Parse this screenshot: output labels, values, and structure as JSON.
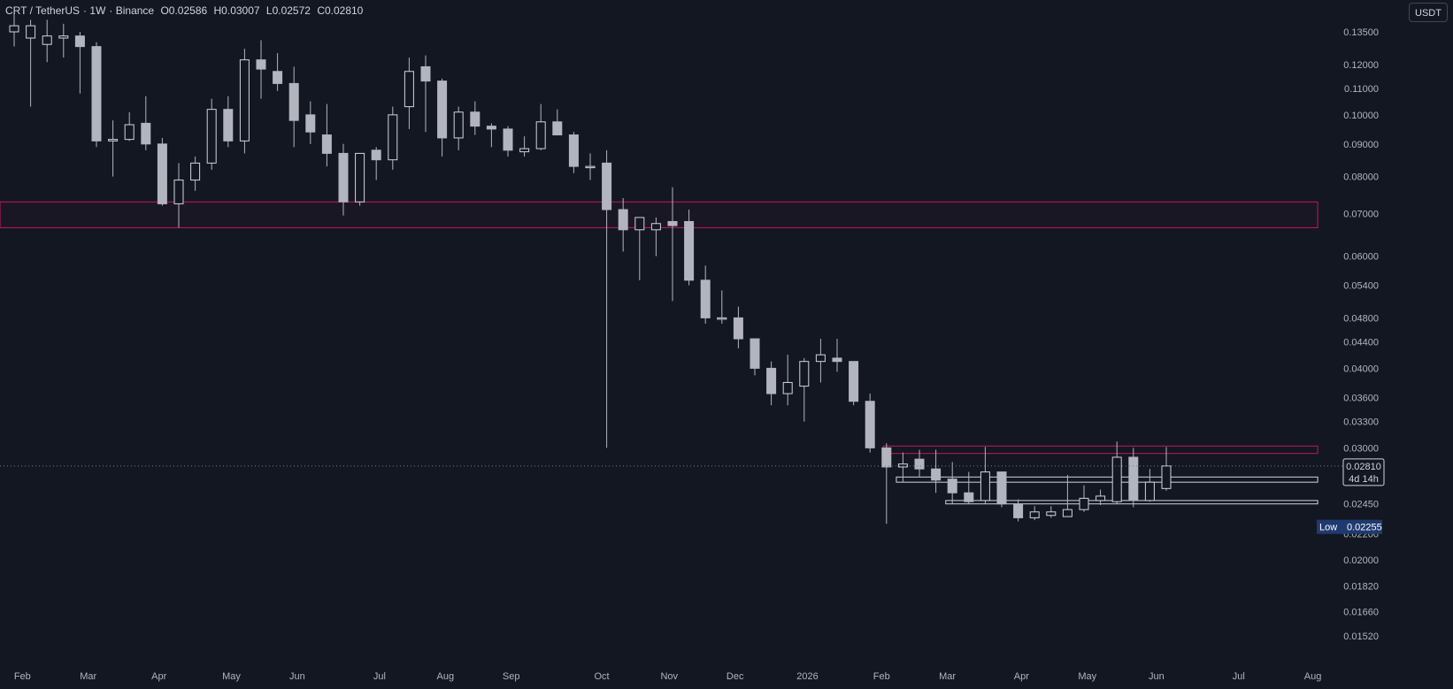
{
  "legend": {
    "symbol": "CRT / TetherUS",
    "interval": "1W",
    "exchange": "Binance",
    "open": "O0.02586",
    "high": "H0.03007",
    "low": "L0.02572",
    "close": "C0.02810"
  },
  "currency_button": "USDT",
  "price_tag": {
    "value": "0.02810",
    "countdown": "4d 14h"
  },
  "low_tag": {
    "label": "Low",
    "value": "0.02255"
  },
  "colors": {
    "background": "#131722",
    "candle": "#b2b5be",
    "wick": "#b2b5be",
    "zone_border": "#c2185b",
    "box_border": "#d1d4dc",
    "low_tag_bg": "#1f3a70"
  },
  "chart_data": {
    "type": "candlestick",
    "scale": "log",
    "ylim": [
      0.0149,
      0.139
    ],
    "y_ticks": [
      "0.13500",
      "0.12000",
      "0.11000",
      "0.10000",
      "0.09000",
      "0.08000",
      "0.07000",
      "0.06000",
      "0.05400",
      "0.04800",
      "0.04400",
      "0.04000",
      "0.03600",
      "0.03300",
      "0.03000",
      "0.02450",
      "0.02200",
      "0.02000",
      "0.01820",
      "0.01660",
      "0.01520"
    ],
    "y_tick_values": [
      0.135,
      0.12,
      0.11,
      0.1,
      0.09,
      0.08,
      0.07,
      0.06,
      0.054,
      0.048,
      0.044,
      0.04,
      0.036,
      0.033,
      0.03,
      0.0245,
      0.022,
      0.02,
      0.0182,
      0.0166,
      0.0152
    ],
    "x_labels": [
      {
        "label": "Feb",
        "week": 0.5
      },
      {
        "label": "Mar",
        "week": 4.5
      },
      {
        "label": "Apr",
        "week": 8.8
      },
      {
        "label": "May",
        "week": 13.2
      },
      {
        "label": "Jun",
        "week": 17.2
      },
      {
        "label": "Jul",
        "week": 22.2
      },
      {
        "label": "Aug",
        "week": 26.2
      },
      {
        "label": "Sep",
        "week": 30.2
      },
      {
        "label": "Oct",
        "week": 35.7
      },
      {
        "label": "Nov",
        "week": 39.8
      },
      {
        "label": "Dec",
        "week": 43.8
      },
      {
        "label": "2026",
        "week": 48.2
      },
      {
        "label": "Feb",
        "week": 52.7
      },
      {
        "label": "Mar",
        "week": 56.7
      },
      {
        "label": "Apr",
        "week": 61.2
      },
      {
        "label": "May",
        "week": 65.2
      },
      {
        "label": "Jun",
        "week": 69.4
      },
      {
        "label": "Jul",
        "week": 74.4
      },
      {
        "label": "Aug",
        "week": 78.9
      }
    ],
    "candles": [
      {
        "o": 0.135,
        "h": 0.145,
        "l": 0.128,
        "c": 0.138
      },
      {
        "o": 0.132,
        "h": 0.141,
        "l": 0.103,
        "c": 0.138
      },
      {
        "o": 0.129,
        "h": 0.141,
        "l": 0.121,
        "c": 0.133
      },
      {
        "o": 0.132,
        "h": 0.139,
        "l": 0.123,
        "c": 0.133
      },
      {
        "o": 0.133,
        "h": 0.135,
        "l": 0.108,
        "c": 0.128
      },
      {
        "o": 0.128,
        "h": 0.13,
        "l": 0.089,
        "c": 0.091
      },
      {
        "o": 0.091,
        "h": 0.098,
        "l": 0.08,
        "c": 0.0915
      },
      {
        "o": 0.0915,
        "h": 0.101,
        "l": 0.091,
        "c": 0.0965
      },
      {
        "o": 0.097,
        "h": 0.107,
        "l": 0.088,
        "c": 0.09
      },
      {
        "o": 0.09,
        "h": 0.092,
        "l": 0.072,
        "c": 0.0725
      },
      {
        "o": 0.0725,
        "h": 0.084,
        "l": 0.0665,
        "c": 0.079
      },
      {
        "o": 0.079,
        "h": 0.086,
        "l": 0.076,
        "c": 0.084
      },
      {
        "o": 0.084,
        "h": 0.106,
        "l": 0.082,
        "c": 0.102
      },
      {
        "o": 0.102,
        "h": 0.107,
        "l": 0.089,
        "c": 0.091
      },
      {
        "o": 0.091,
        "h": 0.127,
        "l": 0.087,
        "c": 0.122
      },
      {
        "o": 0.122,
        "h": 0.131,
        "l": 0.106,
        "c": 0.118
      },
      {
        "o": 0.117,
        "h": 0.125,
        "l": 0.109,
        "c": 0.112
      },
      {
        "o": 0.112,
        "h": 0.119,
        "l": 0.089,
        "c": 0.098
      },
      {
        "o": 0.1,
        "h": 0.105,
        "l": 0.09,
        "c": 0.094
      },
      {
        "o": 0.093,
        "h": 0.104,
        "l": 0.083,
        "c": 0.087
      },
      {
        "o": 0.087,
        "h": 0.09,
        "l": 0.0695,
        "c": 0.073
      },
      {
        "o": 0.073,
        "h": 0.087,
        "l": 0.072,
        "c": 0.087
      },
      {
        "o": 0.088,
        "h": 0.089,
        "l": 0.079,
        "c": 0.085
      },
      {
        "o": 0.085,
        "h": 0.103,
        "l": 0.082,
        "c": 0.1
      },
      {
        "o": 0.103,
        "h": 0.123,
        "l": 0.095,
        "c": 0.117
      },
      {
        "o": 0.119,
        "h": 0.124,
        "l": 0.094,
        "c": 0.113
      },
      {
        "o": 0.113,
        "h": 0.114,
        "l": 0.086,
        "c": 0.092
      },
      {
        "o": 0.092,
        "h": 0.103,
        "l": 0.088,
        "c": 0.101
      },
      {
        "o": 0.101,
        "h": 0.105,
        "l": 0.093,
        "c": 0.096
      },
      {
        "o": 0.096,
        "h": 0.097,
        "l": 0.089,
        "c": 0.095
      },
      {
        "o": 0.095,
        "h": 0.096,
        "l": 0.086,
        "c": 0.088
      },
      {
        "o": 0.0875,
        "h": 0.0925,
        "l": 0.086,
        "c": 0.0885
      },
      {
        "o": 0.0885,
        "h": 0.104,
        "l": 0.088,
        "c": 0.0975
      },
      {
        "o": 0.0975,
        "h": 0.102,
        "l": 0.093,
        "c": 0.093
      },
      {
        "o": 0.093,
        "h": 0.094,
        "l": 0.081,
        "c": 0.083
      },
      {
        "o": 0.083,
        "h": 0.087,
        "l": 0.079,
        "c": 0.083
      },
      {
        "o": 0.084,
        "h": 0.088,
        "l": 0.03,
        "c": 0.071
      },
      {
        "o": 0.071,
        "h": 0.074,
        "l": 0.061,
        "c": 0.066
      },
      {
        "o": 0.066,
        "h": 0.069,
        "l": 0.055,
        "c": 0.069
      },
      {
        "o": 0.066,
        "h": 0.069,
        "l": 0.06,
        "c": 0.0675
      },
      {
        "o": 0.068,
        "h": 0.077,
        "l": 0.051,
        "c": 0.067
      },
      {
        "o": 0.068,
        "h": 0.071,
        "l": 0.054,
        "c": 0.055
      },
      {
        "o": 0.055,
        "h": 0.058,
        "l": 0.047,
        "c": 0.048
      },
      {
        "o": 0.048,
        "h": 0.053,
        "l": 0.047,
        "c": 0.048
      },
      {
        "o": 0.048,
        "h": 0.05,
        "l": 0.043,
        "c": 0.0445
      },
      {
        "o": 0.0445,
        "h": 0.0445,
        "l": 0.039,
        "c": 0.04
      },
      {
        "o": 0.04,
        "h": 0.041,
        "l": 0.035,
        "c": 0.0365
      },
      {
        "o": 0.0365,
        "h": 0.042,
        "l": 0.035,
        "c": 0.038
      },
      {
        "o": 0.0375,
        "h": 0.0415,
        "l": 0.033,
        "c": 0.041
      },
      {
        "o": 0.041,
        "h": 0.0445,
        "l": 0.038,
        "c": 0.042
      },
      {
        "o": 0.0415,
        "h": 0.0445,
        "l": 0.0395,
        "c": 0.041
      },
      {
        "o": 0.041,
        "h": 0.041,
        "l": 0.035,
        "c": 0.0355
      },
      {
        "o": 0.0355,
        "h": 0.0365,
        "l": 0.0295,
        "c": 0.03
      },
      {
        "o": 0.03,
        "h": 0.0305,
        "l": 0.0228,
        "c": 0.028
      },
      {
        "o": 0.028,
        "h": 0.0295,
        "l": 0.0265,
        "c": 0.0283
      },
      {
        "o": 0.0288,
        "h": 0.0298,
        "l": 0.027,
        "c": 0.0278
      },
      {
        "o": 0.0278,
        "h": 0.0298,
        "l": 0.0255,
        "c": 0.0267
      },
      {
        "o": 0.0268,
        "h": 0.0285,
        "l": 0.0245,
        "c": 0.0255
      },
      {
        "o": 0.0255,
        "h": 0.0275,
        "l": 0.0245,
        "c": 0.0247
      },
      {
        "o": 0.0248,
        "h": 0.0301,
        "l": 0.0245,
        "c": 0.0275
      },
      {
        "o": 0.0275,
        "h": 0.0275,
        "l": 0.0242,
        "c": 0.0245
      },
      {
        "o": 0.0245,
        "h": 0.0249,
        "l": 0.023,
        "c": 0.0233
      },
      {
        "o": 0.0233,
        "h": 0.0243,
        "l": 0.0231,
        "c": 0.0238
      },
      {
        "o": 0.0235,
        "h": 0.0243,
        "l": 0.0233,
        "c": 0.0238
      },
      {
        "o": 0.0234,
        "h": 0.0272,
        "l": 0.0234,
        "c": 0.024
      },
      {
        "o": 0.024,
        "h": 0.0262,
        "l": 0.0238,
        "c": 0.025
      },
      {
        "o": 0.0248,
        "h": 0.0258,
        "l": 0.0244,
        "c": 0.0252
      },
      {
        "o": 0.0247,
        "h": 0.0307,
        "l": 0.0245,
        "c": 0.029
      },
      {
        "o": 0.029,
        "h": 0.03,
        "l": 0.0242,
        "c": 0.0248
      },
      {
        "o": 0.0248,
        "h": 0.0278,
        "l": 0.0247,
        "c": 0.0265
      },
      {
        "o": 0.0259,
        "h": 0.0301,
        "l": 0.0257,
        "c": 0.0281
      }
    ],
    "zones": [
      {
        "from_week": -1,
        "to_week": 79.2,
        "top": 0.073,
        "bottom": 0.0665,
        "stroke": "#c2185b"
      },
      {
        "from_week": 52.8,
        "to_week": 79.2,
        "top": 0.0302,
        "bottom": 0.0294,
        "stroke": "#c2185b"
      },
      {
        "from_week": 53.6,
        "to_week": 79.2,
        "top": 0.027,
        "bottom": 0.0265,
        "stroke": "#d1d4dc"
      },
      {
        "from_week": 56.6,
        "to_week": 79.2,
        "top": 0.0248,
        "bottom": 0.0245,
        "stroke": "#d1d4dc"
      }
    ],
    "current_price": 0.0281,
    "low_value": 0.02255
  }
}
